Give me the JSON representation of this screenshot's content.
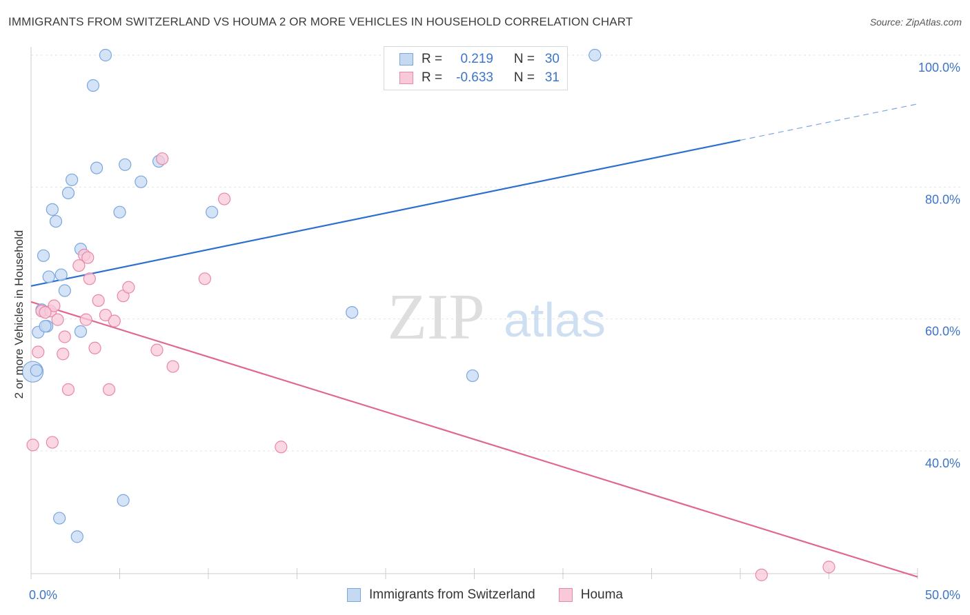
{
  "header": {
    "title": "IMMIGRANTS FROM SWITZERLAND VS HOUMA 2 OR MORE VEHICLES IN HOUSEHOLD CORRELATION CHART",
    "source": "Source: ZipAtlas.com"
  },
  "watermark": {
    "zip": "ZIP",
    "atlas": "atlas"
  },
  "legend": {
    "rows": [
      {
        "r_label": "R =",
        "r_value": "0.219",
        "n_label": "N =",
        "n_value": "30"
      },
      {
        "r_label": "R =",
        "r_value": "-0.633",
        "n_label": "N =",
        "n_value": "31"
      }
    ]
  },
  "chart_data": {
    "type": "scatter",
    "xlabel": "",
    "ylabel": "2 or more Vehicles in Household",
    "xlim": [
      0,
      50
    ],
    "ylim": [
      20,
      102
    ],
    "x_tick_labels": {
      "min": "0.0%",
      "max": "50.0%"
    },
    "y_ticks": [
      {
        "value": 100,
        "label": "100.0%"
      },
      {
        "value": 80,
        "label": "80.0%"
      },
      {
        "value": 60,
        "label": "60.0%"
      },
      {
        "value": 40,
        "label": "40.0%"
      }
    ],
    "grid": true,
    "series": [
      {
        "name": "Immigrants from Switzerland",
        "color": "#7aa6e0",
        "fill": "#c5d9f3",
        "points": [
          [
            0.1,
            52.0
          ],
          [
            0.3,
            52.2
          ],
          [
            0.4,
            58.0
          ],
          [
            0.6,
            61.4
          ],
          [
            0.7,
            69.6
          ],
          [
            0.9,
            58.9
          ],
          [
            1.0,
            66.4
          ],
          [
            1.2,
            76.6
          ],
          [
            1.4,
            74.8
          ],
          [
            1.7,
            66.7
          ],
          [
            1.9,
            64.3
          ],
          [
            2.1,
            79.1
          ],
          [
            2.3,
            81.1
          ],
          [
            2.8,
            58.1
          ],
          [
            2.8,
            70.6
          ],
          [
            3.5,
            95.4
          ],
          [
            3.7,
            82.9
          ],
          [
            4.2,
            100.0
          ],
          [
            5.0,
            76.2
          ],
          [
            5.3,
            83.4
          ],
          [
            6.2,
            80.8
          ],
          [
            7.2,
            83.9
          ],
          [
            10.2,
            76.2
          ],
          [
            18.1,
            61.0
          ],
          [
            24.9,
            51.4
          ],
          [
            31.8,
            100.0
          ],
          [
            1.6,
            29.8
          ],
          [
            2.6,
            27.0
          ],
          [
            5.2,
            32.5
          ],
          [
            0.8,
            58.9
          ]
        ],
        "trend": {
          "x0": 0,
          "y0": 65.0,
          "x1": 40.0,
          "y1": 87.1,
          "dash_to_x": 50,
          "dash_to_y": 92.6
        }
      },
      {
        "name": "Houma",
        "color": "#e887a6",
        "fill": "#f8cad9",
        "points": [
          [
            0.1,
            40.9
          ],
          [
            0.4,
            55.0
          ],
          [
            0.6,
            61.2
          ],
          [
            1.1,
            61.2
          ],
          [
            1.2,
            41.3
          ],
          [
            1.3,
            62.0
          ],
          [
            1.5,
            59.9
          ],
          [
            1.8,
            54.7
          ],
          [
            1.9,
            57.3
          ],
          [
            2.1,
            49.3
          ],
          [
            2.7,
            68.1
          ],
          [
            3.0,
            69.7
          ],
          [
            3.1,
            59.9
          ],
          [
            3.2,
            69.3
          ],
          [
            3.3,
            66.1
          ],
          [
            3.6,
            55.6
          ],
          [
            3.8,
            62.8
          ],
          [
            4.2,
            60.6
          ],
          [
            4.4,
            49.3
          ],
          [
            4.7,
            59.7
          ],
          [
            5.2,
            63.5
          ],
          [
            5.5,
            64.8
          ],
          [
            7.1,
            55.3
          ],
          [
            7.4,
            84.3
          ],
          [
            8.0,
            52.8
          ],
          [
            9.8,
            66.1
          ],
          [
            10.9,
            78.2
          ],
          [
            14.1,
            40.6
          ],
          [
            41.2,
            21.2
          ],
          [
            45.0,
            22.4
          ],
          [
            0.8,
            61.0
          ]
        ],
        "trend": {
          "x0": 0,
          "y0": 62.6,
          "x1": 50.0,
          "y1": 20.9
        }
      }
    ]
  },
  "bottom_legend": {
    "items": [
      {
        "label": "Immigrants from Switzerland"
      },
      {
        "label": "Houma"
      }
    ]
  }
}
